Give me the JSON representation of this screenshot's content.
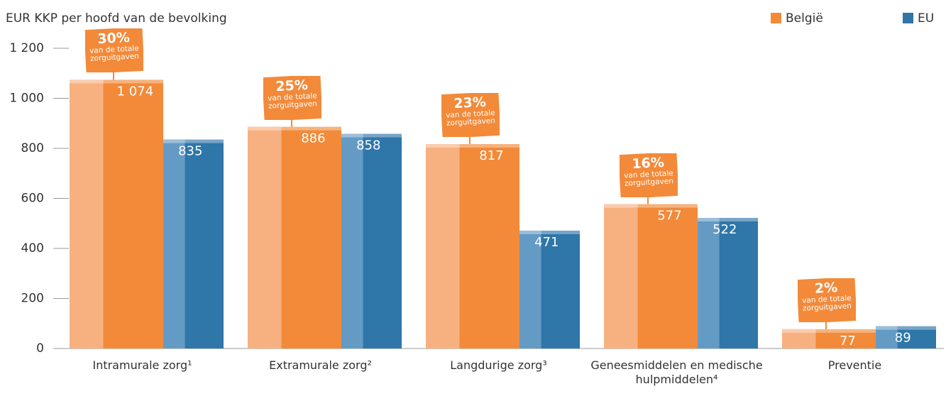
{
  "chart_data": {
    "type": "bar",
    "title": "EUR KKP per hoofd van de bevolking",
    "categories": [
      "Intramurale zorg¹",
      "Extramurale zorg²",
      "Langdurige zorg³",
      "Geneesmiddelen en medische hulpmiddelen⁴",
      "Preventie"
    ],
    "series": [
      {
        "name": "België",
        "color": "#f28a3a",
        "values": [
          1074,
          886,
          817,
          577,
          77
        ],
        "value_labels": [
          "1 074",
          "886",
          "817",
          "577",
          "77"
        ]
      },
      {
        "name": "EU",
        "color": "#2f76a9",
        "values": [
          835,
          858,
          471,
          522,
          89
        ],
        "value_labels": [
          "835",
          "858",
          "471",
          "522",
          "89"
        ]
      }
    ],
    "annotations": [
      {
        "text": "30%",
        "subtext": "van de totale zorguitgaven"
      },
      {
        "text": "25%",
        "subtext": "van de totale zorguitgaven"
      },
      {
        "text": "23%",
        "subtext": "van de totale zorguitgaven"
      },
      {
        "text": "16%",
        "subtext": "van de totale zorguitgaven"
      },
      {
        "text": "2%",
        "subtext": "van de totale zorguitgaven"
      }
    ],
    "ylim": [
      0,
      1200
    ],
    "yticks": [
      0,
      200,
      400,
      600,
      800,
      {
        "value": 1000,
        "label": "1 000"
      },
      {
        "value": 1200,
        "label": "1 200"
      }
    ],
    "grid": false,
    "legend": "top-right"
  }
}
